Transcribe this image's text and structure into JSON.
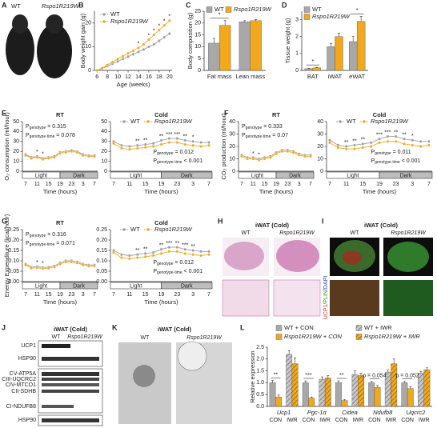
{
  "panels": {
    "letters": [
      "A",
      "B",
      "C",
      "D",
      "E",
      "F",
      "G",
      "H",
      "I",
      "J",
      "K",
      "L"
    ],
    "A": {
      "labels": [
        "WT",
        "Rspo1R219W"
      ]
    },
    "H": {
      "title": "iWAT (Cold)",
      "labels": [
        "WT",
        "Rspo1R219W"
      ]
    },
    "I": {
      "title": "iWAT (Cold)",
      "labels": [
        "WT",
        "Rspo1R219W"
      ],
      "stain": [
        "UCP1",
        "/PLIN",
        "/DAPI"
      ]
    },
    "J": {
      "title": "iWAT (Cold)",
      "labels": [
        "WT",
        "Rspo1R219W"
      ],
      "bands": [
        "UCP1",
        "HSP90",
        "CV-ATP5A",
        "CIII-UQCRC2",
        "CIV-MTCO1",
        "CII-SDHB",
        "CI-NDUFB8",
        "HSP90"
      ]
    },
    "K": {
      "title": "iWAT (Cold)",
      "labels": [
        "WT",
        "Rspo1R219W"
      ]
    }
  },
  "chart_data": [
    {
      "type": "line",
      "y_label": "Body weight gain (g)",
      "x_label": "Age (weeks)",
      "x": [
        6,
        7,
        8,
        9,
        10,
        11,
        12,
        13,
        14,
        15,
        16,
        17,
        18,
        19,
        20
      ],
      "xlim": [
        5.5,
        20.5
      ],
      "xticks": [
        6,
        8,
        10,
        12,
        14,
        16,
        18,
        20
      ],
      "ylim": [
        0,
        25
      ],
      "yticks": [
        0,
        10,
        20
      ],
      "legend": true,
      "series": [
        {
          "name": "WT",
          "color": "#9e9e9e",
          "values": [
            0,
            0.8,
            1.8,
            2.8,
            3.8,
            4.8,
            5.8,
            6.8,
            7.8,
            8.8,
            10,
            11,
            12.5,
            14,
            15.5
          ]
        },
        {
          "name": "Rspo1R219W",
          "color": "#f2a81d",
          "values": [
            0,
            1,
            2.3,
            3.5,
            4.8,
            6,
            7.2,
            8.3,
            9.5,
            11,
            13,
            15,
            17,
            19,
            21
          ]
        }
      ],
      "significance": [
        null,
        null,
        null,
        null,
        null,
        null,
        null,
        null,
        "*",
        null,
        "*",
        "*",
        "*",
        "*",
        "*"
      ]
    },
    {
      "type": "bar",
      "y_label": "Body composition (g)",
      "categories": [
        "Fat mass",
        "Lean mass"
      ],
      "ylim": [
        0,
        25
      ],
      "yticks": [
        0,
        5,
        10,
        15,
        20,
        25
      ],
      "legend": true,
      "series": [
        {
          "name": "WT",
          "color": "#a8a8a8",
          "values": [
            11.5,
            20.5
          ],
          "errors": [
            2,
            0.5
          ]
        },
        {
          "name": "Rspo1R219W",
          "color": "#f2a81d",
          "values": [
            19,
            21
          ],
          "errors": [
            2,
            0.5
          ]
        }
      ],
      "significance": [
        "*",
        null
      ]
    },
    {
      "type": "bar",
      "y_label": "Tissue weight (g)",
      "categories": [
        "BAT",
        "iWAT",
        "eWAT"
      ],
      "ylim": [
        0,
        3.5
      ],
      "yticks": [
        0,
        1,
        2,
        3
      ],
      "legend": true,
      "series": [
        {
          "name": "WT",
          "color": "#a8a8a8",
          "values": [
            0.1,
            1.4,
            1.7
          ],
          "errors": [
            0.03,
            0.2,
            0.3
          ]
        },
        {
          "name": "Rspo1R219W",
          "color": "#f2a81d",
          "values": [
            0.15,
            2.0,
            2.9
          ],
          "errors": [
            0.03,
            0.2,
            0.3
          ]
        }
      ],
      "significance": [
        "*",
        null,
        "*"
      ]
    },
    {
      "type": "line",
      "title": "RT",
      "y_label": "O₂ consumption (ml/hour)",
      "x_label": "Time (hours)",
      "categories": [
        "7",
        null,
        "11",
        null,
        "15",
        null,
        "19",
        null,
        "23",
        null,
        "3",
        null,
        "7"
      ],
      "phases": [
        "Light",
        "Dark"
      ],
      "ylim": [
        0,
        50
      ],
      "yticks": [
        0,
        10,
        20,
        30,
        40,
        50
      ],
      "legend": false,
      "series": [
        {
          "name": "WT",
          "color": "#9e9e9e",
          "values": [
            17,
            14,
            15,
            13,
            14,
            15,
            19,
            20,
            21,
            20,
            17,
            16,
            16
          ]
        },
        {
          "name": "Rspo1R219W",
          "color": "#f2a81d",
          "values": [
            16,
            13,
            14,
            12,
            13,
            14,
            18,
            19,
            20,
            19,
            16,
            15,
            15
          ]
        }
      ],
      "significance": [
        null,
        null,
        "*",
        "*",
        null,
        null,
        null,
        null,
        null,
        null,
        null,
        null,
        null
      ],
      "annotations": [
        {
          "symbol": "P",
          "subscript": "genotype",
          "text": " = 0.315"
        },
        {
          "symbol": "P",
          "subscript": "genotype·time",
          "text": " = 0.078"
        }
      ]
    },
    {
      "type": "line",
      "title": "Cold",
      "x_label": "Time (hours)",
      "categories": [
        "7",
        null,
        "11",
        null,
        "15",
        null,
        "19",
        null,
        "23",
        null,
        "3",
        null,
        "7"
      ],
      "phases": [
        "Light",
        "Dark"
      ],
      "ylim": [
        0,
        50
      ],
      "yticks": [
        0,
        10,
        20,
        30,
        40,
        50
      ],
      "legend": true,
      "series": [
        {
          "name": "WT",
          "color": "#9e9e9e",
          "values": [
            30,
            26,
            25,
            26,
            27,
            28,
            31,
            33,
            33,
            31,
            30,
            29,
            29
          ]
        },
        {
          "name": "Rspo1R219W",
          "color": "#f2a81d",
          "values": [
            28,
            23,
            22,
            23,
            24,
            25,
            27,
            29,
            29,
            27,
            26,
            25,
            26
          ]
        }
      ],
      "significance": [
        null,
        null,
        null,
        "**",
        "**",
        null,
        "**",
        "***",
        "***",
        "**",
        "*",
        null,
        null
      ],
      "annotations": [
        {
          "symbol": "P",
          "subscript": "genotype",
          "text": " = 0.012"
        },
        {
          "symbol": "P",
          "subscript": "genotype·time",
          "text": " < 0.001"
        }
      ]
    },
    {
      "type": "line",
      "title": "RT",
      "y_label": "CO₂ production (ml/hour)",
      "x_label": "Time (hours)",
      "categories": [
        "7",
        null,
        "11",
        null,
        "15",
        null,
        "19",
        null,
        "23",
        null,
        "3",
        null,
        "7"
      ],
      "phases": [
        "Light",
        "Dark"
      ],
      "ylim": [
        0,
        40
      ],
      "yticks": [
        0,
        10,
        20,
        30,
        40
      ],
      "legend": false,
      "series": [
        {
          "name": "WT",
          "color": "#9e9e9e",
          "values": [
            13,
            11,
            11,
            10,
            11,
            12,
            15,
            17,
            17,
            16,
            14,
            13,
            13
          ]
        },
        {
          "name": "Rspo1R219W",
          "color": "#f2a81d",
          "values": [
            12,
            10,
            10,
            9,
            10,
            11,
            14,
            16,
            16,
            15,
            13,
            12,
            12
          ]
        }
      ],
      "significance": [
        null,
        null,
        "*",
        "*",
        null,
        null,
        null,
        null,
        null,
        null,
        null,
        null,
        null
      ],
      "annotations": [
        {
          "symbol": "P",
          "subscript": "genotype",
          "text": " = 0.333"
        },
        {
          "symbol": "P",
          "subscript": "genotype·time",
          "text": " = 0.07"
        }
      ]
    },
    {
      "type": "line",
      "title": "Cold",
      "x_label": "Time (hours)",
      "categories": [
        "7",
        null,
        "11",
        null,
        "15",
        null,
        "19",
        null,
        "23",
        null,
        "3",
        null,
        "7"
      ],
      "phases": [
        "Light",
        "Dark"
      ],
      "ylim": [
        0,
        40
      ],
      "yticks": [
        0,
        10,
        20,
        30,
        40
      ],
      "legend": true,
      "series": [
        {
          "name": "WT",
          "color": "#9e9e9e",
          "values": [
            25,
            21,
            20,
            21,
            22,
            23,
            26,
            28,
            28,
            26,
            25,
            24,
            24
          ]
        },
        {
          "name": "Rspo1R219W",
          "color": "#f2a81d",
          "values": [
            23,
            19,
            18,
            18,
            19,
            20,
            23,
            24,
            24,
            22,
            21,
            20,
            21
          ]
        }
      ],
      "significance": [
        null,
        null,
        "**",
        "**",
        "**",
        null,
        "***",
        "***",
        "**",
        "**",
        "*",
        null,
        null
      ],
      "annotations": [
        {
          "symbol": "P",
          "subscript": "genotype",
          "text": " = 0.011"
        },
        {
          "symbol": "P",
          "subscript": "genotype·time",
          "text": " < 0.001"
        }
      ]
    },
    {
      "type": "line",
      "title": "RT",
      "y_label": "Energy Expenditure (kcal/hour)",
      "x_label": "Time (hours)",
      "categories": [
        "7",
        null,
        "11",
        null,
        "15",
        null,
        "19",
        null,
        "23",
        null,
        "3",
        null,
        "7"
      ],
      "phases": [
        "Light",
        "Dark"
      ],
      "ylim": [
        0,
        0.25
      ],
      "yticks": [
        {
          "value": 0,
          "label": "0.00"
        },
        0.05,
        {
          "value": 0.1,
          "label": "0.10"
        },
        0.15,
        {
          "value": 0.2,
          "label": "0.20"
        },
        0.25
      ],
      "legend": false,
      "series": [
        {
          "name": "WT",
          "color": "#9e9e9e",
          "values": [
            0.085,
            0.07,
            0.072,
            0.068,
            0.07,
            0.075,
            0.09,
            0.1,
            0.1,
            0.095,
            0.085,
            0.08,
            0.08
          ]
        },
        {
          "name": "Rspo1R219W",
          "color": "#f2a81d",
          "values": [
            0.08,
            0.065,
            0.067,
            0.063,
            0.065,
            0.07,
            0.085,
            0.095,
            0.095,
            0.09,
            0.08,
            0.075,
            0.075
          ]
        }
      ],
      "significance": [
        null,
        null,
        "*",
        "*",
        null,
        null,
        null,
        null,
        null,
        null,
        null,
        null,
        null
      ],
      "annotations": [
        {
          "symbol": "P",
          "subscript": "genotype",
          "text": " = 0.316"
        },
        {
          "symbol": "P",
          "subscript": "genotype·time",
          "text": " = 0.071"
        }
      ]
    },
    {
      "type": "line",
      "title": "Cold",
      "x_label": "Time (hours)",
      "categories": [
        "7",
        null,
        "11",
        null,
        "15",
        null,
        "19",
        null,
        "23",
        null,
        "3",
        null,
        "7"
      ],
      "phases": [
        "Light",
        "Dark"
      ],
      "ylim": [
        0,
        0.25
      ],
      "yticks": [
        {
          "value": 0,
          "label": "0.00"
        },
        0.05,
        {
          "value": 0.1,
          "label": "0.10"
        },
        0.15,
        {
          "value": 0.2,
          "label": "0.20"
        },
        0.25
      ],
      "legend": true,
      "series": [
        {
          "name": "WT",
          "color": "#9e9e9e",
          "values": [
            0.15,
            0.13,
            0.125,
            0.13,
            0.135,
            0.14,
            0.155,
            0.165,
            0.165,
            0.155,
            0.15,
            0.145,
            0.145
          ]
        },
        {
          "name": "Rspo1R219W",
          "color": "#f2a81d",
          "values": [
            0.14,
            0.115,
            0.11,
            0.115,
            0.12,
            0.125,
            0.135,
            0.145,
            0.145,
            0.135,
            0.13,
            0.125,
            0.13
          ]
        }
      ],
      "significance": [
        null,
        null,
        null,
        "**",
        "**",
        null,
        "**",
        "***",
        "**",
        "***",
        "**",
        null,
        null
      ],
      "annotations": [
        {
          "symbol": "P",
          "subscript": "genotype",
          "text": " = 0.012"
        },
        {
          "symbol": "P",
          "subscript": "genotype·time",
          "text": " < 0.001"
        }
      ]
    },
    {
      "type": "bar",
      "y_label": "Relative expression",
      "categories": [
        "Ucp1",
        "Pgc-1α",
        "Cidea",
        "Ndufb8",
        "Uqcrc2"
      ],
      "group_labels": [
        "CON",
        "IWR"
      ],
      "ylim": [
        0,
        2.5
      ],
      "yticks": [
        {
          "value": 0,
          "label": "0.0"
        },
        0.5,
        {
          "value": 1,
          "label": "1.0"
        },
        1.5,
        {
          "value": 2,
          "label": "2.0"
        },
        2.5
      ],
      "legend": true,
      "series": [
        {
          "name": "WT + CON",
          "color": "#a8a8a8",
          "hatch": false,
          "values": [
            1.0,
            1.0,
            1.0,
            1.0,
            1.0
          ],
          "errors": [
            0.1,
            0.08,
            0.08,
            0.06,
            0.06
          ]
        },
        {
          "name": "Rspo1R219W + CON",
          "color": "#f2a81d",
          "hatch": false,
          "values": [
            0.4,
            0.35,
            0.25,
            0.8,
            0.75
          ],
          "errors": [
            0.08,
            0.05,
            0.05,
            0.08,
            0.08
          ]
        },
        {
          "name": "WT + IWR",
          "color": "#a8a8a8",
          "hatch": true,
          "values": [
            2.2,
            1.15,
            1.35,
            1.45,
            1.4
          ],
          "errors": [
            0.15,
            0.1,
            0.15,
            0.1,
            0.08
          ]
        },
        {
          "name": "Rspo1R219W + IWR",
          "color": "#f2a81d",
          "hatch": true,
          "values": [
            1.8,
            1.2,
            1.3,
            1.8,
            1.55
          ],
          "errors": [
            0.25,
            0.1,
            0.1,
            0.2,
            0.08
          ]
        }
      ],
      "significance": [
        "**",
        "***",
        "**",
        "p = 0.054",
        "p = 0.052"
      ]
    }
  ]
}
